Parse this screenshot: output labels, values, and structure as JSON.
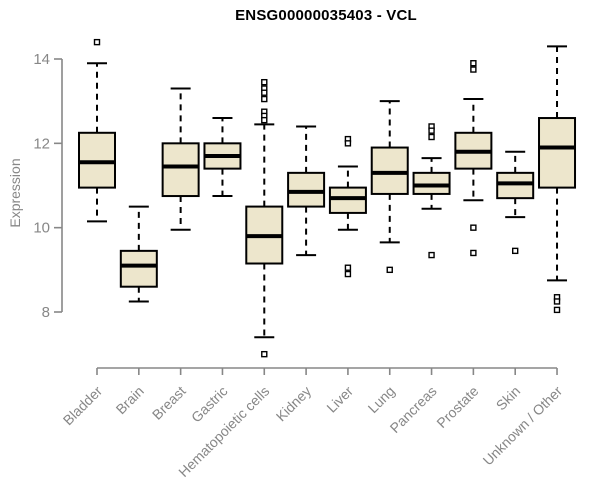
{
  "title": "ENSG00000035403 - VCL",
  "colors": {
    "box_fill": "#EDE6CC",
    "box_stroke": "#000000",
    "median": "#000000",
    "whisker": "#000000",
    "axis": "#878787",
    "tick_text": "#878787",
    "title_text": "#000000",
    "background": "#FFFFFF"
  },
  "chart_data": {
    "type": "boxplot",
    "title": "ENSG00000035403 - VCL",
    "xlabel": "",
    "ylabel": "Expression",
    "yticks": [
      8,
      10,
      12,
      14
    ],
    "ylim": [
      6.6,
      14.6
    ],
    "grid": "off",
    "legend": "none",
    "categories": [
      "Bladder",
      "Brain",
      "Breast",
      "Gastric",
      "Hematopoietic cells",
      "Kidney",
      "Liver",
      "Lung",
      "Pancreas",
      "Prostate",
      "Skin",
      "Unknown / Other"
    ],
    "boxes": [
      {
        "category": "Bladder",
        "low": 10.15,
        "q1": 10.95,
        "median": 11.55,
        "q3": 12.25,
        "high": 13.9,
        "outliers": [
          14.4
        ]
      },
      {
        "category": "Brain",
        "low": 8.25,
        "q1": 8.6,
        "median": 9.1,
        "q3": 9.45,
        "high": 10.5,
        "outliers": []
      },
      {
        "category": "Breast",
        "low": 9.95,
        "q1": 10.75,
        "median": 11.45,
        "q3": 12.0,
        "high": 13.3,
        "outliers": []
      },
      {
        "category": "Gastric",
        "low": 10.75,
        "q1": 11.4,
        "median": 11.7,
        "q3": 12.0,
        "high": 12.6,
        "outliers": []
      },
      {
        "category": "Hematopoietic cells",
        "low": 7.4,
        "q1": 9.15,
        "median": 9.8,
        "q3": 10.5,
        "high": 12.45,
        "outliers": [
          13.45,
          13.3,
          13.2,
          13.05,
          12.75,
          12.65,
          12.55,
          7.0
        ]
      },
      {
        "category": "Kidney",
        "low": 9.35,
        "q1": 10.5,
        "median": 10.85,
        "q3": 11.3,
        "high": 12.4,
        "outliers": []
      },
      {
        "category": "Liver",
        "low": 9.95,
        "q1": 10.35,
        "median": 10.7,
        "q3": 10.95,
        "high": 11.45,
        "outliers": [
          12.1,
          12.0,
          9.05,
          8.9
        ]
      },
      {
        "category": "Lung",
        "low": 9.65,
        "q1": 10.8,
        "median": 11.3,
        "q3": 11.9,
        "high": 13.0,
        "outliers": [
          9.0
        ]
      },
      {
        "category": "Pancreas",
        "low": 10.45,
        "q1": 10.8,
        "median": 11.0,
        "q3": 11.3,
        "high": 11.65,
        "outliers": [
          12.4,
          12.3,
          12.15,
          9.35
        ]
      },
      {
        "category": "Prostate",
        "low": 10.65,
        "q1": 11.4,
        "median": 11.8,
        "q3": 12.25,
        "high": 13.05,
        "outliers": [
          13.9,
          13.75,
          10.0,
          9.4
        ]
      },
      {
        "category": "Skin",
        "low": 10.25,
        "q1": 10.7,
        "median": 11.05,
        "q3": 11.3,
        "high": 11.8,
        "outliers": [
          9.45
        ]
      },
      {
        "category": "Unknown / Other",
        "low": 8.75,
        "q1": 10.95,
        "median": 11.9,
        "q3": 12.6,
        "high": 14.3,
        "outliers": [
          8.35,
          8.25,
          8.05
        ]
      }
    ]
  }
}
